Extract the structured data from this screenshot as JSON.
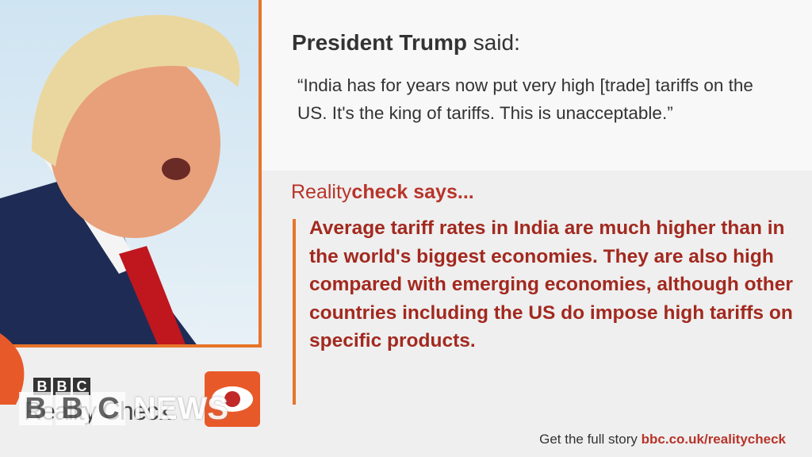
{
  "quote": {
    "speaker": "President Trump",
    "verb": "said:",
    "text": "“India has for years now put very high [trade] tariffs on the US. It's the king of tariffs. This is unacceptable.”"
  },
  "reality_check": {
    "label_light": "Reality",
    "label_bold": "check says...",
    "text": "Average tariff rates in India are much higher than in the world's biggest economies. They are also high compared with emerging economies, although other countries including the US do impose high tariffs on specific products."
  },
  "branding": {
    "bbc": [
      "B",
      "B",
      "C"
    ],
    "reality_check": "Reality Check",
    "watermark_blocks": [
      "B",
      "B",
      "C"
    ],
    "watermark_word": "NEWS"
  },
  "footer": {
    "prompt": "Get the full story",
    "link": "bbc.co.uk/realitycheck"
  }
}
